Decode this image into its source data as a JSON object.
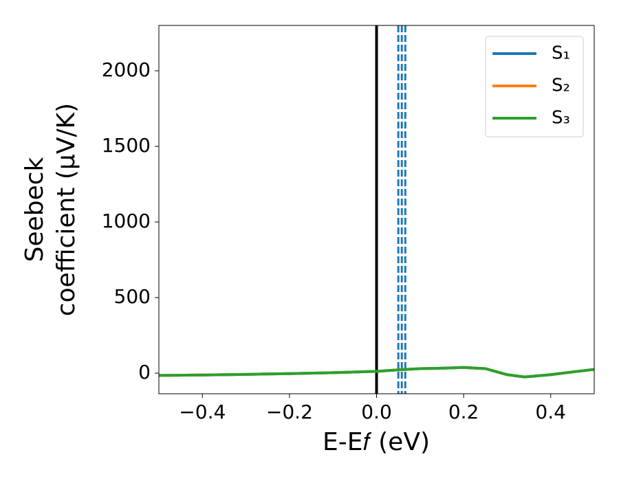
{
  "chart_data": {
    "type": "line",
    "xlabel": "E-E𝑓 (eV)",
    "ylabel": [
      "Seebeck",
      "coefficient  (μV/K)"
    ],
    "x": [
      -0.5,
      -0.4,
      -0.3,
      -0.2,
      -0.1,
      0,
      0.05,
      0.1,
      0.15,
      0.2,
      0.25,
      0.3,
      0.34,
      0.4,
      0.45,
      0.5
    ],
    "series": [
      {
        "name": "S₁",
        "color": "#1f77b4",
        "values": [
          -15,
          -12,
          -8,
          -3,
          3,
          12,
          22,
          30,
          33,
          38,
          30,
          -10,
          -25,
          -10,
          8,
          25
        ]
      },
      {
        "name": "S₂",
        "color": "#ff7f0e",
        "values": [
          -15,
          -12,
          -8,
          -3,
          3,
          12,
          22,
          30,
          33,
          38,
          30,
          -10,
          -25,
          -10,
          8,
          25
        ]
      },
      {
        "name": "S₃",
        "color": "#2ca02c",
        "values": [
          -15,
          -12,
          -8,
          -3,
          3,
          12,
          22,
          30,
          33,
          38,
          30,
          -10,
          -25,
          -10,
          8,
          25
        ]
      }
    ],
    "vlines": [
      {
        "x": 0,
        "color": "#000000",
        "style": "solid"
      },
      {
        "x": 0.05,
        "color": "#1f77b4",
        "style": "dashed"
      },
      {
        "x": 0.058,
        "color": "#1f77b4",
        "style": "dashed"
      },
      {
        "x": 0.066,
        "color": "#1f77b4",
        "style": "dashed"
      }
    ],
    "xlim": [
      -0.5,
      0.5
    ],
    "ylim": [
      -136,
      2300
    ],
    "xticks": [
      {
        "value": -0.4,
        "label": "−0.4"
      },
      {
        "value": -0.2,
        "label": "−0.2"
      },
      {
        "value": 0,
        "label": "0.0"
      },
      {
        "value": 0.2,
        "label": "0.2"
      },
      {
        "value": 0.4,
        "label": "0.4"
      }
    ],
    "yticks": [
      0,
      500,
      1000,
      1500,
      2000
    ],
    "legend": "upper right"
  }
}
